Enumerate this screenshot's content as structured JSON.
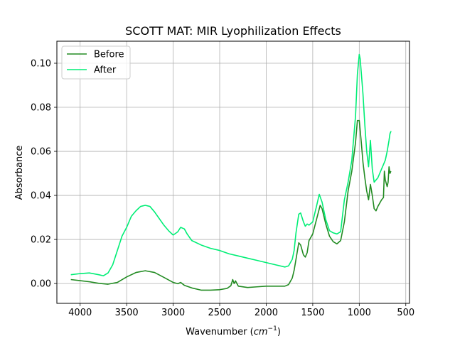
{
  "chart_data": {
    "type": "line",
    "title": "SCOTT MAT: MIR Lyophilization Effects",
    "xlabel_prefix": "Wavenumber (",
    "xlabel_math_base": "cm",
    "xlabel_math_exp": "−1",
    "xlabel_suffix": ")",
    "ylabel": "Absorbance",
    "xlim": [
      4250,
      460
    ],
    "ylim": [
      -0.009,
      0.11
    ],
    "x_reversed": true,
    "grid": true,
    "legend_position": "top-left",
    "x_ticks": [
      4000,
      3500,
      3000,
      2500,
      2000,
      1500,
      1000,
      500
    ],
    "x_tick_labels": [
      "4000",
      "3500",
      "3000",
      "2500",
      "2000",
      "1500",
      "1000",
      "500"
    ],
    "y_ticks": [
      0.0,
      0.02,
      0.04,
      0.06,
      0.08,
      0.1
    ],
    "y_tick_labels": [
      "0.00",
      "0.02",
      "0.04",
      "0.06",
      "0.08",
      "0.10"
    ],
    "series": [
      {
        "name": "Before",
        "color": "#228b22",
        "points": [
          [
            4100,
            0.0018
          ],
          [
            4000,
            0.0013
          ],
          [
            3900,
            0.0008
          ],
          [
            3800,
            0.0001
          ],
          [
            3700,
            -0.0003
          ],
          [
            3600,
            0.0005
          ],
          [
            3500,
            0.003
          ],
          [
            3400,
            0.005
          ],
          [
            3300,
            0.0058
          ],
          [
            3200,
            0.005
          ],
          [
            3100,
            0.0028
          ],
          [
            3000,
            0.0005
          ],
          [
            2950,
            -0.0001
          ],
          [
            2920,
            0.0005
          ],
          [
            2880,
            -0.0008
          ],
          [
            2800,
            -0.002
          ],
          [
            2700,
            -0.003
          ],
          [
            2600,
            -0.003
          ],
          [
            2500,
            -0.0028
          ],
          [
            2420,
            -0.0022
          ],
          [
            2380,
            -0.001
          ],
          [
            2360,
            0.0018
          ],
          [
            2345,
            0.0
          ],
          [
            2330,
            0.0012
          ],
          [
            2300,
            -0.0012
          ],
          [
            2200,
            -0.0018
          ],
          [
            2100,
            -0.0015
          ],
          [
            2000,
            -0.0012
          ],
          [
            1900,
            -0.0012
          ],
          [
            1800,
            -0.0012
          ],
          [
            1760,
            -0.0005
          ],
          [
            1720,
            0.0025
          ],
          [
            1700,
            0.006
          ],
          [
            1680,
            0.011
          ],
          [
            1650,
            0.0185
          ],
          [
            1630,
            0.0175
          ],
          [
            1600,
            0.013
          ],
          [
            1580,
            0.012
          ],
          [
            1560,
            0.014
          ],
          [
            1540,
            0.0195
          ],
          [
            1500,
            0.0225
          ],
          [
            1460,
            0.029
          ],
          [
            1420,
            0.0355
          ],
          [
            1400,
            0.034
          ],
          [
            1360,
            0.027
          ],
          [
            1320,
            0.0215
          ],
          [
            1280,
            0.019
          ],
          [
            1240,
            0.018
          ],
          [
            1200,
            0.0195
          ],
          [
            1160,
            0.028
          ],
          [
            1120,
            0.042
          ],
          [
            1080,
            0.051
          ],
          [
            1040,
            0.064
          ],
          [
            1020,
            0.074
          ],
          [
            1000,
            0.074
          ],
          [
            980,
            0.065
          ],
          [
            960,
            0.055
          ],
          [
            940,
            0.048
          ],
          [
            920,
            0.042
          ],
          [
            900,
            0.038
          ],
          [
            880,
            0.045
          ],
          [
            860,
            0.04
          ],
          [
            840,
            0.034
          ],
          [
            820,
            0.033
          ],
          [
            800,
            0.035
          ],
          [
            760,
            0.038
          ],
          [
            740,
            0.039
          ],
          [
            730,
            0.051
          ],
          [
            720,
            0.047
          ],
          [
            700,
            0.044
          ],
          [
            690,
            0.046
          ],
          [
            680,
            0.053
          ],
          [
            670,
            0.05
          ],
          [
            660,
            0.051
          ]
        ]
      },
      {
        "name": "After",
        "color": "#00ee76",
        "points": [
          [
            4100,
            0.004
          ],
          [
            4000,
            0.0045
          ],
          [
            3900,
            0.0048
          ],
          [
            3800,
            0.004
          ],
          [
            3750,
            0.0035
          ],
          [
            3700,
            0.0048
          ],
          [
            3650,
            0.0085
          ],
          [
            3600,
            0.015
          ],
          [
            3550,
            0.0215
          ],
          [
            3500,
            0.0255
          ],
          [
            3450,
            0.0305
          ],
          [
            3400,
            0.033
          ],
          [
            3350,
            0.035
          ],
          [
            3300,
            0.0355
          ],
          [
            3250,
            0.035
          ],
          [
            3200,
            0.0325
          ],
          [
            3150,
            0.0295
          ],
          [
            3100,
            0.0265
          ],
          [
            3050,
            0.024
          ],
          [
            3000,
            0.022
          ],
          [
            2950,
            0.0235
          ],
          [
            2920,
            0.0255
          ],
          [
            2880,
            0.0248
          ],
          [
            2850,
            0.0225
          ],
          [
            2800,
            0.0195
          ],
          [
            2700,
            0.0175
          ],
          [
            2600,
            0.016
          ],
          [
            2500,
            0.015
          ],
          [
            2400,
            0.0135
          ],
          [
            2300,
            0.0125
          ],
          [
            2200,
            0.0115
          ],
          [
            2100,
            0.0105
          ],
          [
            2000,
            0.0095
          ],
          [
            1900,
            0.0085
          ],
          [
            1800,
            0.0075
          ],
          [
            1760,
            0.008
          ],
          [
            1720,
            0.011
          ],
          [
            1700,
            0.015
          ],
          [
            1680,
            0.023
          ],
          [
            1650,
            0.0315
          ],
          [
            1630,
            0.032
          ],
          [
            1600,
            0.028
          ],
          [
            1580,
            0.026
          ],
          [
            1560,
            0.027
          ],
          [
            1540,
            0.0265
          ],
          [
            1500,
            0.028
          ],
          [
            1460,
            0.035
          ],
          [
            1430,
            0.0405
          ],
          [
            1400,
            0.037
          ],
          [
            1360,
            0.029
          ],
          [
            1320,
            0.024
          ],
          [
            1280,
            0.023
          ],
          [
            1240,
            0.0225
          ],
          [
            1200,
            0.0235
          ],
          [
            1160,
            0.038
          ],
          [
            1120,
            0.046
          ],
          [
            1080,
            0.056
          ],
          [
            1040,
            0.076
          ],
          [
            1020,
            0.095
          ],
          [
            1000,
            0.104
          ],
          [
            990,
            0.102
          ],
          [
            960,
            0.086
          ],
          [
            940,
            0.072
          ],
          [
            920,
            0.06
          ],
          [
            900,
            0.053
          ],
          [
            880,
            0.065
          ],
          [
            860,
            0.052
          ],
          [
            840,
            0.046
          ],
          [
            820,
            0.047
          ],
          [
            800,
            0.048
          ],
          [
            760,
            0.052
          ],
          [
            740,
            0.054
          ],
          [
            720,
            0.056
          ],
          [
            700,
            0.06
          ],
          [
            680,
            0.065
          ],
          [
            670,
            0.068
          ],
          [
            660,
            0.069
          ],
          [
            655,
            0.069
          ]
        ]
      }
    ]
  }
}
